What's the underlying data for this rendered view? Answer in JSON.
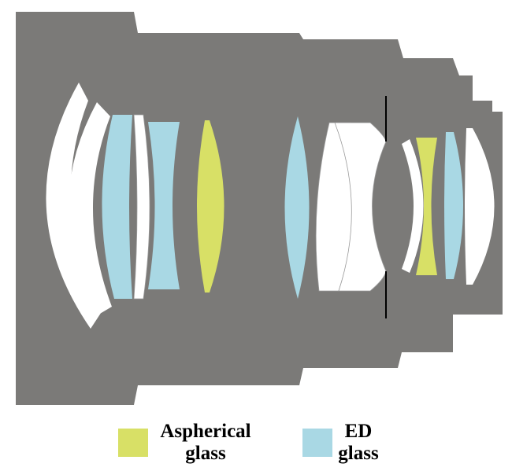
{
  "colors": {
    "housing": "#7b7a78",
    "element": "#ffffff",
    "aspherical": "#d8e066",
    "ed": "#a9d8e4",
    "stop": "#000000",
    "outline": "#9a9a9a"
  },
  "legend": [
    {
      "key": "aspherical",
      "line1": "Aspherical",
      "line2": "glass",
      "color": "#d8e066"
    },
    {
      "key": "ed",
      "line1": "ED",
      "line2": "glass",
      "color": "#a9d8e4"
    }
  ]
}
